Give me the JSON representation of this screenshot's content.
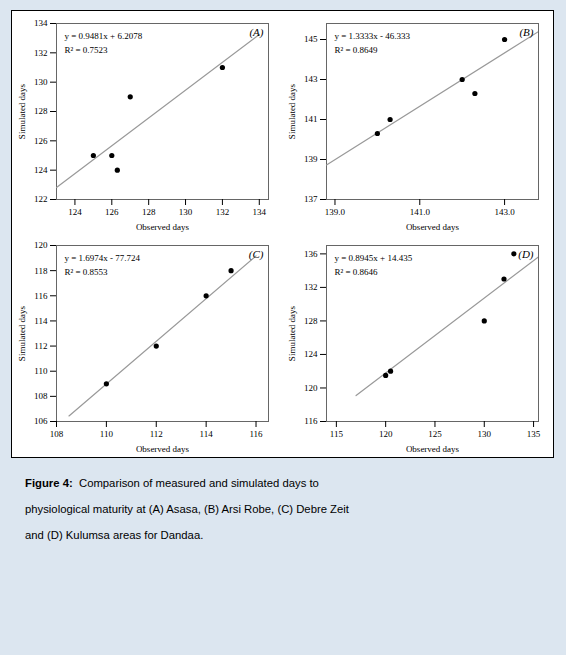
{
  "chart_data": [
    {
      "type": "scatter",
      "title": "(A)",
      "x": [
        125.0,
        126.0,
        126.3,
        127.0,
        132.0
      ],
      "y": [
        125.0,
        125.0,
        124.0,
        129.0,
        131.0
      ],
      "color": "#000000",
      "xlabel": "Observed days",
      "ylabel": "Simulated days",
      "xlim": [
        123.0,
        134.5
      ],
      "ylim": [
        122.0,
        134
      ],
      "xticks": [
        124,
        126,
        128,
        130,
        132,
        134
      ],
      "yticks": [
        122,
        124,
        126,
        128,
        130,
        132,
        134
      ],
      "trend_line": {
        "x": [
          123.0,
          134.0
        ],
        "y": [
          122.8241,
          133.2532
        ],
        "color": "#999999"
      },
      "annotations": [
        "y = 0.9481x + 6.2078",
        "R² = 0.7523"
      ]
    },
    {
      "type": "scatter",
      "title": "(B)",
      "x": [
        140.0,
        140.3,
        142.0,
        142.3,
        143.0
      ],
      "y": [
        140.3,
        141.0,
        143.0,
        142.3,
        145.0
      ],
      "color": "#000000",
      "xlabel": "Observed days",
      "ylabel": "Simulated days",
      "xlim": [
        138.8,
        143.8
      ],
      "ylim": [
        137,
        145.8
      ],
      "xticks": [
        139,
        141,
        143
      ],
      "yticks": [
        137,
        139,
        141,
        143,
        145
      ],
      "trend_line": {
        "x": [
          138.8,
          143.8
        ],
        "y": [
          138.72904,
          145.39554
        ],
        "color": "#999999"
      },
      "annotations": [
        "y = 1.3333x - 46.333",
        "R² = 0.8649"
      ]
    },
    {
      "type": "scatter",
      "title": "(C)",
      "x": [
        110.0,
        112.0,
        114.0,
        115.0
      ],
      "y": [
        109.0,
        112.0,
        116.0,
        118.0
      ],
      "color": "#000000",
      "xlabel": "Observed days",
      "ylabel": "Simulated days",
      "xlim": [
        108.0,
        116.5
      ],
      "ylim": [
        106,
        120.0
      ],
      "xticks": [
        108,
        110,
        112,
        114,
        116
      ],
      "yticks": [
        106,
        108,
        110,
        112,
        114,
        116,
        118,
        120
      ],
      "trend_line": {
        "x": [
          108.5,
          116.0
        ],
        "y": [
          106.4439,
          119.1744
        ],
        "color": "#999999"
      },
      "annotations": [
        "y = 1.6974x - 77.724",
        "R² = 0.8553"
      ]
    },
    {
      "type": "scatter",
      "title": "(D)",
      "x": [
        120.0,
        120.5,
        130.0,
        132.0,
        133.0
      ],
      "y": [
        121.5,
        122.0,
        128.0,
        133.0,
        136.0
      ],
      "color": "#000000",
      "xlabel": "Observed days",
      "ylabel": "Simulated days",
      "xlim": [
        114.0,
        135.5
      ],
      "ylim": [
        116,
        137.0
      ],
      "xticks": [
        115,
        120,
        125,
        130,
        135
      ],
      "yticks": [
        116,
        120,
        124,
        128,
        132,
        136
      ],
      "trend_line": {
        "x": [
          117.0,
          135.5
        ],
        "y": [
          119.0915,
          135.63975
        ],
        "color": "#999999"
      },
      "annotations": [
        "y = 0.8945x + 14.435",
        "R² = 0.8646"
      ]
    }
  ],
  "caption_title": "Figure 4:",
  "caption": [
    "  Comparison of measured and simulated days to",
    "physiological maturity at (A) Asasa, (B) Arsi Robe, (C) Debre Zeit",
    "and (D) Kulumsa areas for Dandaa."
  ]
}
